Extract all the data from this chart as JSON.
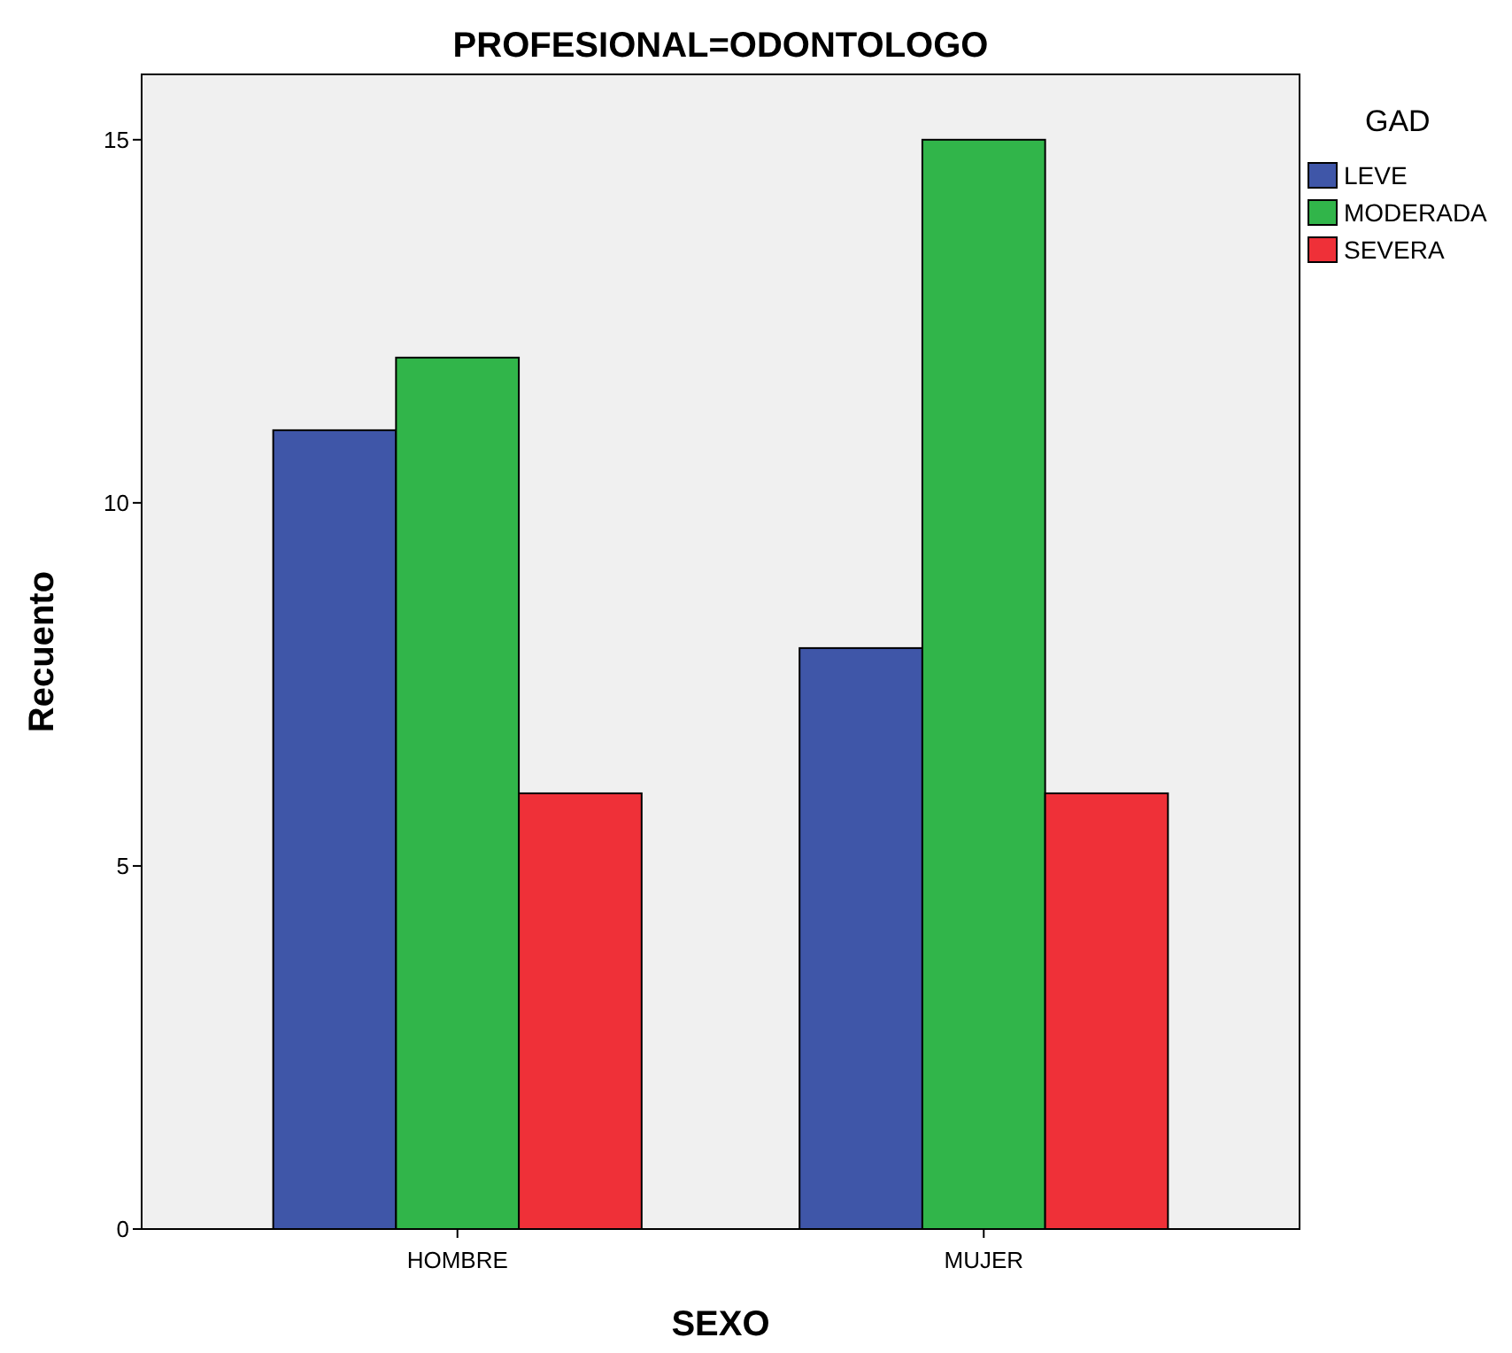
{
  "chart_data": {
    "type": "bar",
    "title": "PROFESIONAL=ODONTOLOGO",
    "xlabel": "SEXO",
    "ylabel": "Recuento",
    "legend_title": "GAD",
    "legend": "right",
    "categories": [
      "HOMBRE",
      "MUJER"
    ],
    "ylim": [
      0,
      15.9
    ],
    "yticks": [
      0,
      5,
      10,
      15
    ],
    "series": [
      {
        "name": "LEVE",
        "color": "#3f56a8",
        "values": [
          11,
          8
        ]
      },
      {
        "name": "MODERADA",
        "color": "#31b54a",
        "values": [
          12,
          15
        ]
      },
      {
        "name": "SEVERA",
        "color": "#ef3038",
        "values": [
          6,
          6
        ]
      }
    ]
  }
}
